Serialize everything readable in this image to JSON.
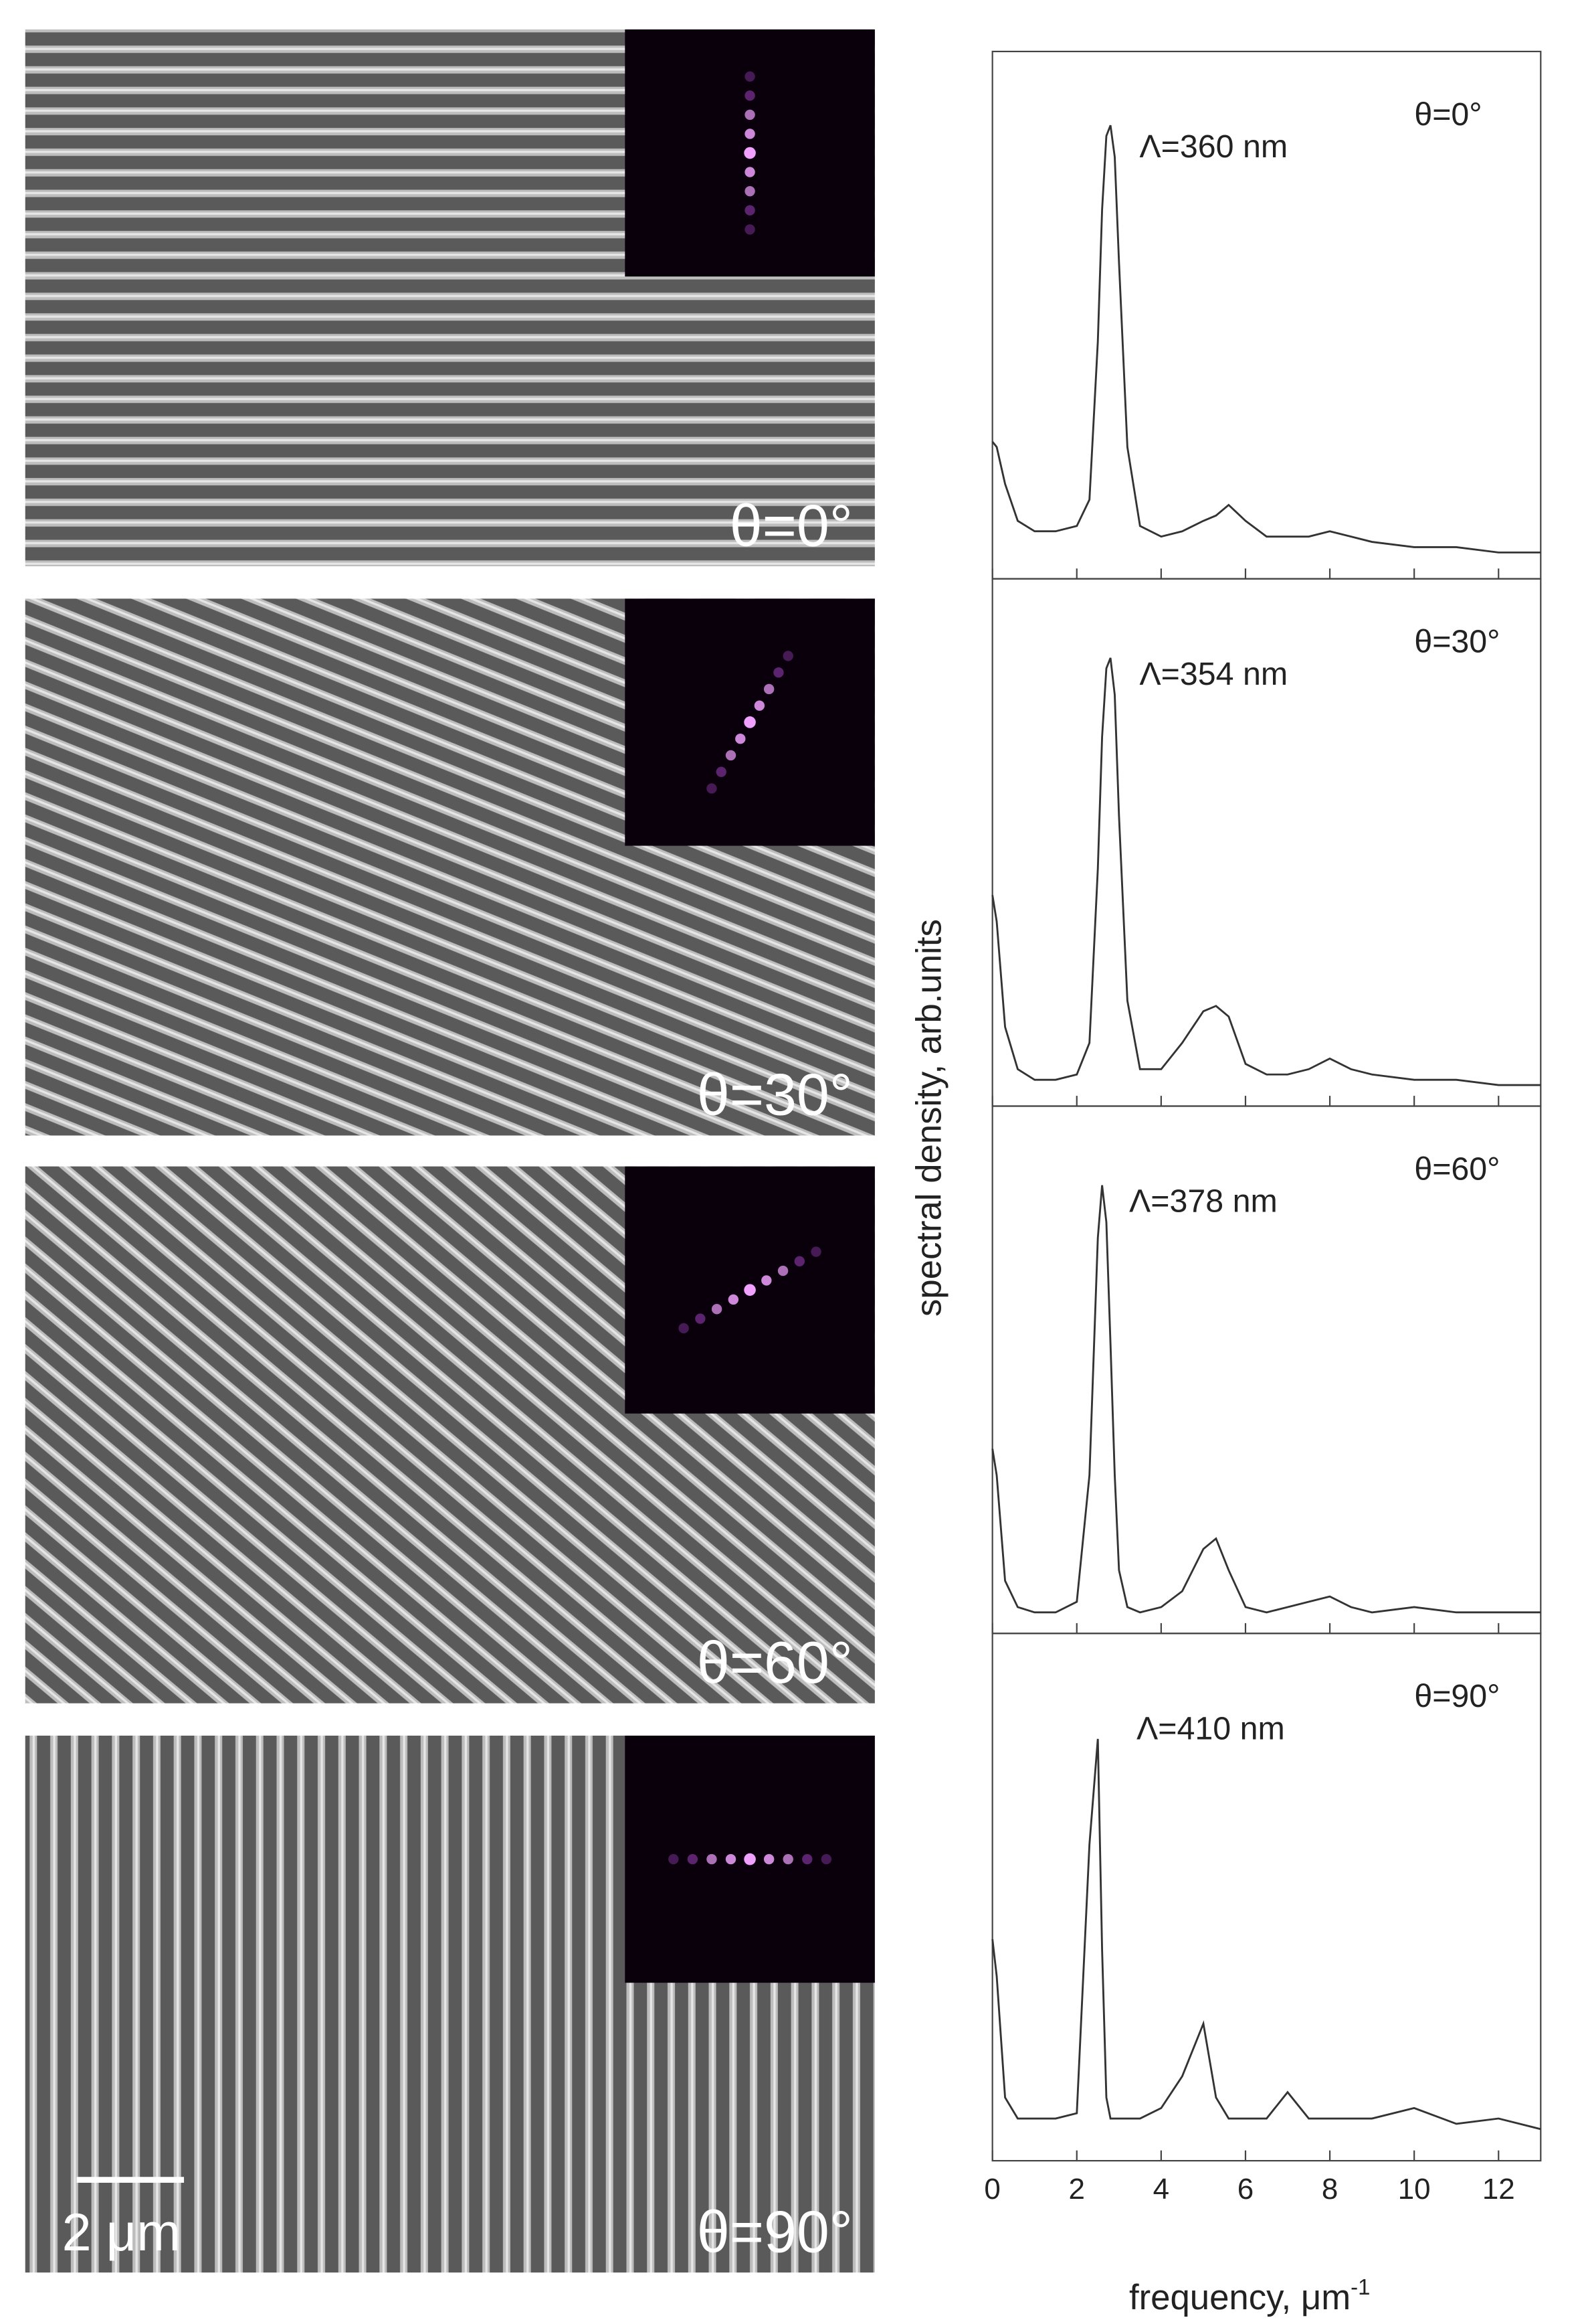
{
  "images": [
    {
      "label": "θ=0°"
    },
    {
      "label": "θ=30°"
    },
    {
      "label": "θ=60°"
    },
    {
      "label": "θ=90°"
    }
  ],
  "scale_bar": "2 μm",
  "shared_axis": {
    "x": [
      0,
      0.1,
      0.3,
      0.6,
      1,
      1.5,
      2,
      2.3,
      2.5,
      2.6,
      2.7,
      2.8,
      2.9,
      3.0,
      3.2,
      3.5,
      4,
      4.5,
      5,
      5.3,
      5.6,
      6,
      6.5,
      7,
      7.5,
      8,
      8.5,
      9,
      10,
      11,
      12,
      13
    ],
    "xlim": [
      0,
      13
    ],
    "xticks": [
      0,
      2,
      4,
      6,
      8,
      10,
      12
    ],
    "xlabel": "frequency, μm",
    "xlabel_sup": "-1",
    "ylabel": "spectral density, arb.units"
  },
  "chart_data": [
    {
      "type": "line",
      "annotation": "Λ=360 nm",
      "angle_label": "θ=0°",
      "ylim": [
        0,
        1
      ],
      "series": [
        {
          "color": "#333333",
          "values": [
            0.26,
            0.25,
            0.18,
            0.11,
            0.09,
            0.09,
            0.1,
            0.15,
            0.45,
            0.7,
            0.84,
            0.86,
            0.8,
            0.6,
            0.25,
            0.1,
            0.08,
            0.09,
            0.11,
            0.12,
            0.14,
            0.11,
            0.08,
            0.08,
            0.08,
            0.09,
            0.08,
            0.07,
            0.06,
            0.06,
            0.05,
            0.05
          ]
        }
      ]
    },
    {
      "type": "line",
      "annotation": "Λ=354 nm",
      "angle_label": "θ=30°",
      "ylim": [
        0,
        1
      ],
      "series": [
        {
          "color": "#333333",
          "values": [
            0.4,
            0.35,
            0.15,
            0.07,
            0.05,
            0.05,
            0.06,
            0.12,
            0.45,
            0.7,
            0.83,
            0.85,
            0.78,
            0.55,
            0.2,
            0.07,
            0.07,
            0.12,
            0.18,
            0.19,
            0.17,
            0.08,
            0.06,
            0.06,
            0.07,
            0.09,
            0.07,
            0.06,
            0.05,
            0.05,
            0.04,
            0.04
          ]
        }
      ]
    },
    {
      "type": "line",
      "annotation": "Λ=378 nm",
      "angle_label": "θ=60°",
      "ylim": [
        0,
        1
      ],
      "series": [
        {
          "color": "#333333",
          "values": [
            0.35,
            0.3,
            0.1,
            0.05,
            0.04,
            0.04,
            0.06,
            0.3,
            0.75,
            0.85,
            0.78,
            0.55,
            0.3,
            0.12,
            0.05,
            0.04,
            0.05,
            0.08,
            0.16,
            0.18,
            0.12,
            0.05,
            0.04,
            0.05,
            0.06,
            0.07,
            0.05,
            0.04,
            0.05,
            0.04,
            0.04,
            0.04
          ]
        }
      ]
    },
    {
      "type": "line",
      "annotation": "Λ=410 nm",
      "angle_label": "θ=90°",
      "ylim": [
        0,
        1
      ],
      "series": [
        {
          "color": "#333333",
          "values": [
            0.42,
            0.35,
            0.12,
            0.08,
            0.08,
            0.08,
            0.09,
            0.6,
            0.8,
            0.4,
            0.12,
            0.08,
            0.08,
            0.08,
            0.08,
            0.08,
            0.1,
            0.16,
            0.26,
            0.12,
            0.08,
            0.08,
            0.08,
            0.13,
            0.08,
            0.08,
            0.08,
            0.08,
            0.1,
            0.07,
            0.08,
            0.06
          ]
        }
      ]
    }
  ]
}
